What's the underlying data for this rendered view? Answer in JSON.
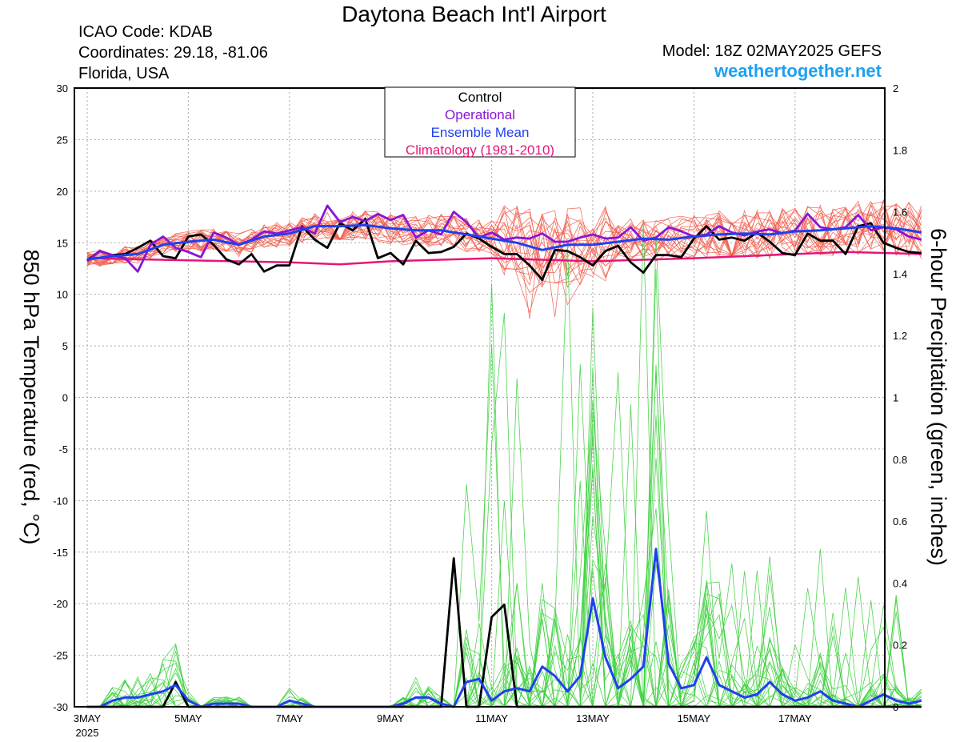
{
  "header": {
    "title": "Daytona Beach Int'l Airport",
    "icao": "ICAO Code: KDAB",
    "coordinates": "Coordinates: 29.18, -81.06",
    "location": "Florida, USA",
    "model": "Model: 18Z 02MAY2025 GEFS",
    "site": "weathertogether.net"
  },
  "chart_data": {
    "type": "line",
    "title": "Daytona Beach Int'l Airport",
    "ylabel": "850 hPa Temperature (red, °C)",
    "y2label": "6-hour Precipitation (green, inches)",
    "x_range_days": [
      0,
      16.5
    ],
    "ylim": [
      -30,
      30
    ],
    "y2lim": [
      0,
      2
    ],
    "grid": true,
    "legend_position": "top-center",
    "x_ticks": [
      {
        "day": 0,
        "label": "3MAY",
        "sub": "2025"
      },
      {
        "day": 2,
        "label": "5MAY"
      },
      {
        "day": 4,
        "label": "7MAY"
      },
      {
        "day": 6,
        "label": "9MAY"
      },
      {
        "day": 8,
        "label": "11MAY"
      },
      {
        "day": 10,
        "label": "13MAY"
      },
      {
        "day": 12,
        "label": "15MAY"
      },
      {
        "day": 14,
        "label": "17MAY"
      }
    ],
    "y_ticks": [
      30,
      25,
      20,
      15,
      10,
      5,
      0,
      -5,
      -10,
      -15,
      -20,
      -25,
      -30
    ],
    "y2_ticks": [
      2,
      1.8,
      1.6,
      1.4,
      1.2,
      1,
      0.8,
      0.6,
      0.4,
      0.2,
      0
    ],
    "legend": [
      {
        "label": "Control",
        "color": "#000000"
      },
      {
        "label": "Operational",
        "color": "#8a14d6"
      },
      {
        "label": "Ensemble Mean",
        "color": "#2040ee"
      },
      {
        "label": "Climatology (1981-2010)",
        "color": "#e6157a"
      }
    ],
    "colors": {
      "members_temp": "#f05a4a",
      "members_precip": "#3ecf3e",
      "control": "#000000",
      "operational": "#8a14d6",
      "mean": "#2040ee",
      "climatology": "#e6157a"
    },
    "series": {
      "climatology_temp": [
        [
          0,
          13.5
        ],
        [
          2,
          13.3
        ],
        [
          4,
          13.1
        ],
        [
          5,
          12.9
        ],
        [
          6,
          13.2
        ],
        [
          8,
          13.5
        ],
        [
          10,
          13.2
        ],
        [
          12,
          13.5
        ],
        [
          14,
          13.9
        ],
        [
          15,
          14.1
        ],
        [
          16.5,
          13.9
        ]
      ],
      "operational_temp": [
        [
          0,
          13.2
        ],
        [
          0.25,
          14.2
        ],
        [
          0.5,
          13.8
        ],
        [
          0.75,
          13.5
        ],
        [
          1,
          12.2
        ],
        [
          1.25,
          14.8
        ],
        [
          1.5,
          15.6
        ],
        [
          1.75,
          14.5
        ],
        [
          2,
          14.1
        ],
        [
          2.25,
          13.6
        ],
        [
          2.5,
          16
        ],
        [
          2.75,
          15.5
        ],
        [
          3,
          14.8
        ],
        [
          3.25,
          15.3
        ],
        [
          3.5,
          16.1
        ],
        [
          3.75,
          15.9
        ],
        [
          4,
          16.2
        ],
        [
          4.25,
          16.5
        ],
        [
          4.5,
          15.9
        ],
        [
          4.75,
          18.6
        ],
        [
          5,
          17
        ],
        [
          5.25,
          17.5
        ],
        [
          5.5,
          17.1
        ],
        [
          5.75,
          17.8
        ],
        [
          6,
          17.2
        ],
        [
          6.25,
          17.7
        ],
        [
          6.5,
          15.5
        ],
        [
          6.75,
          16.2
        ],
        [
          7,
          15.8
        ],
        [
          7.25,
          18
        ],
        [
          7.5,
          17
        ],
        [
          7.75,
          15.5
        ],
        [
          8,
          16
        ],
        [
          8.25,
          15.3
        ],
        [
          8.5,
          15.5
        ],
        [
          8.75,
          15.4
        ],
        [
          9,
          15.9
        ],
        [
          9.25,
          15.1
        ],
        [
          9.5,
          15.1
        ],
        [
          9.75,
          15.5
        ],
        [
          10,
          15.8
        ],
        [
          10.25,
          15.4
        ],
        [
          10.5,
          15.5
        ],
        [
          10.75,
          16.5
        ],
        [
          11,
          15.2
        ],
        [
          11.25,
          15.5
        ],
        [
          11.5,
          16.5
        ],
        [
          11.75,
          16.1
        ],
        [
          12,
          15.6
        ],
        [
          12.25,
          15.8
        ],
        [
          12.5,
          16.6
        ],
        [
          12.75,
          16
        ],
        [
          13,
          15.7
        ],
        [
          13.25,
          16.1
        ],
        [
          13.5,
          16.3
        ],
        [
          13.75,
          15.9
        ],
        [
          14,
          16.2
        ],
        [
          14.25,
          17.8
        ],
        [
          14.5,
          16.5
        ],
        [
          14.75,
          16.3
        ],
        [
          15,
          16.5
        ],
        [
          15.25,
          17.7
        ],
        [
          15.5,
          16.2
        ],
        [
          15.75,
          16.5
        ],
        [
          16,
          16.3
        ],
        [
          16.25,
          15.6
        ],
        [
          16.5,
          15.3
        ]
      ],
      "control_temp": [
        [
          0,
          13.3
        ],
        [
          0.25,
          14.2
        ],
        [
          0.5,
          13.8
        ],
        [
          0.75,
          13.9
        ],
        [
          1,
          14.5
        ],
        [
          1.25,
          15.2
        ],
        [
          1.5,
          13.7
        ],
        [
          1.75,
          13.5
        ],
        [
          2,
          15.6
        ],
        [
          2.25,
          15.8
        ],
        [
          2.5,
          14.8
        ],
        [
          2.75,
          13.4
        ],
        [
          3,
          12.9
        ],
        [
          3.25,
          13.9
        ],
        [
          3.5,
          12.2
        ],
        [
          3.75,
          12.8
        ],
        [
          4,
          12.8
        ],
        [
          4.25,
          16.6
        ],
        [
          4.5,
          15.3
        ],
        [
          4.75,
          14.5
        ],
        [
          5,
          16.9
        ],
        [
          5.25,
          16.2
        ],
        [
          5.5,
          17.3
        ],
        [
          5.75,
          13.5
        ],
        [
          6,
          14
        ],
        [
          6.25,
          12.9
        ],
        [
          6.5,
          15.2
        ],
        [
          6.75,
          14
        ],
        [
          7,
          14.1
        ],
        [
          7.25,
          14.6
        ],
        [
          7.5,
          15.9
        ],
        [
          7.75,
          15.4
        ],
        [
          8,
          14.6
        ],
        [
          8.25,
          13.9
        ],
        [
          8.5,
          13.9
        ],
        [
          8.75,
          12.8
        ],
        [
          9,
          11.4
        ],
        [
          9.25,
          14.3
        ],
        [
          9.5,
          14.2
        ],
        [
          9.75,
          13.6
        ],
        [
          10,
          12.8
        ],
        [
          10.25,
          14.2
        ],
        [
          10.5,
          14.7
        ],
        [
          10.75,
          13.1
        ],
        [
          11,
          12.1
        ],
        [
          11.25,
          13.8
        ],
        [
          11.5,
          13.8
        ],
        [
          11.75,
          13.6
        ],
        [
          12,
          15.4
        ],
        [
          12.25,
          16.6
        ],
        [
          12.5,
          15.3
        ],
        [
          12.75,
          15.5
        ],
        [
          13,
          15.2
        ],
        [
          13.25,
          16
        ],
        [
          13.5,
          15.1
        ],
        [
          13.75,
          14
        ],
        [
          14,
          13.8
        ],
        [
          14.25,
          15.9
        ],
        [
          14.5,
          15.2
        ],
        [
          14.75,
          15.2
        ],
        [
          15,
          13.9
        ],
        [
          15.25,
          16.6
        ],
        [
          15.5,
          16.9
        ],
        [
          15.75,
          15
        ],
        [
          16,
          14.5
        ],
        [
          16.25,
          14.1
        ],
        [
          16.5,
          14
        ]
      ],
      "mean_temp": [
        [
          0,
          13.4
        ],
        [
          0.5,
          13.7
        ],
        [
          1,
          13.9
        ],
        [
          1.5,
          14.8
        ],
        [
          2,
          15.1
        ],
        [
          2.5,
          15.3
        ],
        [
          3,
          14.8
        ],
        [
          3.5,
          15.6
        ],
        [
          4,
          15.9
        ],
        [
          4.5,
          16.6
        ],
        [
          5,
          16.6
        ],
        [
          5.5,
          16.7
        ],
        [
          6,
          16.4
        ],
        [
          6.5,
          16.2
        ],
        [
          7,
          16.2
        ],
        [
          7.5,
          15.8
        ],
        [
          8,
          15.4
        ],
        [
          8.5,
          15
        ],
        [
          9,
          14.3
        ],
        [
          9.5,
          14.8
        ],
        [
          10,
          14.8
        ],
        [
          10.5,
          15.1
        ],
        [
          11,
          15.4
        ],
        [
          11.5,
          15.3
        ],
        [
          12,
          15.6
        ],
        [
          12.5,
          15.8
        ],
        [
          13,
          15.9
        ],
        [
          13.5,
          15.8
        ],
        [
          14,
          16.1
        ],
        [
          14.5,
          16.2
        ],
        [
          15,
          16.4
        ],
        [
          15.5,
          16.6
        ],
        [
          16,
          16.4
        ],
        [
          16.5,
          16
        ]
      ],
      "control_precip": [
        [
          0,
          0
        ],
        [
          0.5,
          0
        ],
        [
          1,
          0
        ],
        [
          1.5,
          0
        ],
        [
          1.75,
          0.08
        ],
        [
          2,
          0
        ],
        [
          2.5,
          0
        ],
        [
          3,
          0
        ],
        [
          3.5,
          0
        ],
        [
          4,
          0
        ],
        [
          5,
          0
        ],
        [
          6,
          0
        ],
        [
          6.5,
          0
        ],
        [
          7,
          0
        ],
        [
          7.25,
          0.48
        ],
        [
          7.5,
          0
        ],
        [
          7.75,
          0
        ],
        [
          8,
          0.29
        ],
        [
          8.25,
          0.33
        ],
        [
          8.5,
          0
        ],
        [
          9,
          0
        ],
        [
          10,
          0
        ],
        [
          11,
          0
        ],
        [
          12,
          0
        ],
        [
          13,
          0
        ],
        [
          14,
          0
        ],
        [
          15,
          0
        ],
        [
          16,
          0
        ],
        [
          16.5,
          0
        ]
      ],
      "mean_precip": [
        [
          0,
          0
        ],
        [
          0.25,
          0
        ],
        [
          0.5,
          0.02
        ],
        [
          0.75,
          0.03
        ],
        [
          1,
          0.03
        ],
        [
          1.25,
          0.04
        ],
        [
          1.5,
          0.05
        ],
        [
          1.75,
          0.07
        ],
        [
          2,
          0.02
        ],
        [
          2.25,
          0
        ],
        [
          2.5,
          0.01
        ],
        [
          2.75,
          0.01
        ],
        [
          3,
          0.01
        ],
        [
          3.25,
          0
        ],
        [
          3.5,
          0
        ],
        [
          3.75,
          0
        ],
        [
          4,
          0.02
        ],
        [
          4.25,
          0.01
        ],
        [
          4.5,
          0
        ],
        [
          4.75,
          0
        ],
        [
          5,
          0
        ],
        [
          5.25,
          0
        ],
        [
          5.5,
          0
        ],
        [
          5.75,
          0
        ],
        [
          6,
          0
        ],
        [
          6.25,
          0.01
        ],
        [
          6.5,
          0.03
        ],
        [
          6.75,
          0.03
        ],
        [
          7,
          0.01
        ],
        [
          7.25,
          0
        ],
        [
          7.5,
          0.08
        ],
        [
          7.75,
          0.09
        ],
        [
          8,
          0.02
        ],
        [
          8.25,
          0.05
        ],
        [
          8.5,
          0.06
        ],
        [
          8.75,
          0.05
        ],
        [
          9,
          0.13
        ],
        [
          9.25,
          0.1
        ],
        [
          9.5,
          0.05
        ],
        [
          9.75,
          0.1
        ],
        [
          10,
          0.35
        ],
        [
          10.25,
          0.16
        ],
        [
          10.5,
          0.06
        ],
        [
          10.75,
          0.09
        ],
        [
          11,
          0.13
        ],
        [
          11.25,
          0.51
        ],
        [
          11.5,
          0.14
        ],
        [
          11.75,
          0.06
        ],
        [
          12,
          0.07
        ],
        [
          12.25,
          0.16
        ],
        [
          12.5,
          0.07
        ],
        [
          12.75,
          0.05
        ],
        [
          13,
          0.03
        ],
        [
          13.25,
          0.04
        ],
        [
          13.5,
          0.08
        ],
        [
          13.75,
          0.04
        ],
        [
          14,
          0.02
        ],
        [
          14.25,
          0.03
        ],
        [
          14.5,
          0.05
        ],
        [
          14.75,
          0.02
        ],
        [
          15,
          0.01
        ],
        [
          15.25,
          0
        ],
        [
          15.5,
          0.02
        ],
        [
          15.75,
          0.04
        ],
        [
          16,
          0.02
        ],
        [
          16.25,
          0.01
        ],
        [
          16.5,
          0.02
        ]
      ]
    }
  }
}
